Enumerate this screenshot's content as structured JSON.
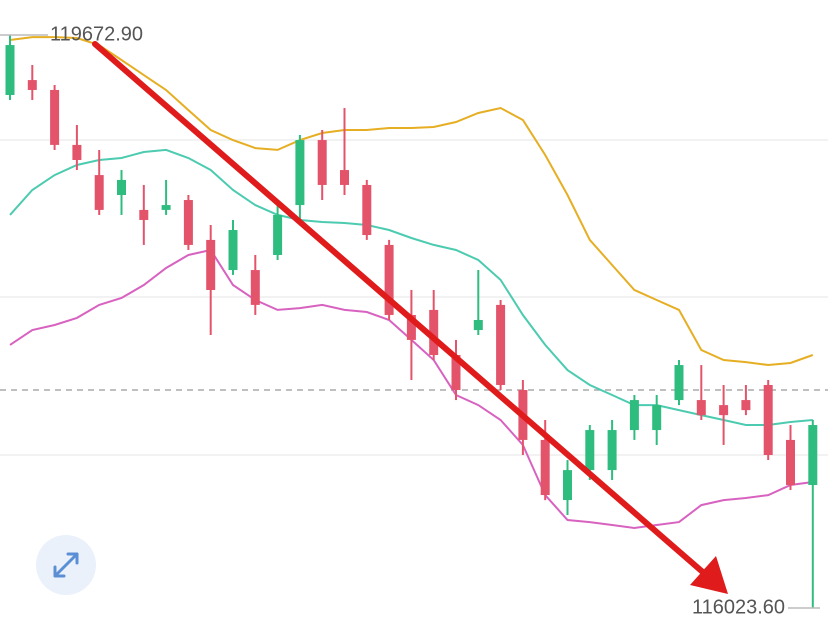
{
  "chart_data": {
    "type": "candlestick",
    "ylim": [
      115883.5,
      119896
    ],
    "up_color": "#2fbd7f",
    "down_color": "#e3546b",
    "open": [
      119291,
      119386,
      119323,
      118973,
      118781,
      118654,
      118559,
      118559,
      118622,
      118368,
      118176,
      118176,
      118272,
      118590,
      119004,
      118813,
      118718,
      118336,
      117890,
      117922,
      117635,
      117794,
      117954,
      117412,
      117094,
      116711,
      116902,
      116902,
      117157,
      117157,
      117348,
      117348,
      117316,
      117348,
      117444,
      117094,
      116807
    ],
    "high": [
      119672.9,
      119482,
      119355,
      119100,
      118941,
      118813,
      118718,
      118750,
      118654,
      118463,
      118495,
      118272,
      118590,
      119036,
      119068,
      119208,
      118750,
      118368,
      118049,
      118049,
      117731,
      118176,
      117985,
      117476,
      117221,
      116966,
      117189,
      117221,
      117380,
      117380,
      117603,
      117571,
      117444,
      117444,
      117476,
      117189,
      117221
    ],
    "low": [
      119259,
      119259,
      118941,
      118813,
      118527,
      118527,
      118336,
      118527,
      118304,
      117762,
      118145,
      117890,
      118240,
      118495,
      118622,
      118654,
      118368,
      117858,
      117476,
      117603,
      117348,
      117762,
      117412,
      116998,
      116711,
      116616,
      116839,
      116839,
      117094,
      117062,
      117316,
      117221,
      117062,
      117252,
      116966,
      116775,
      116023.6
    ],
    "close": [
      119609,
      119323,
      118973,
      118877,
      118559,
      118750,
      118495,
      118590,
      118336,
      118049,
      118431,
      117954,
      118527,
      119004,
      118718,
      118718,
      118399,
      117890,
      117731,
      117635,
      117412,
      117858,
      117444,
      117094,
      116743,
      116902,
      117157,
      117157,
      117348,
      117316,
      117571,
      117252,
      117252,
      117284,
      116998,
      116807,
      117189
    ],
    "bands": [
      {
        "color": "#e6ae22",
        "values": [
          119641,
          119660,
          119660,
          119654,
          119609,
          119514,
          119418,
          119323,
          119195,
          119068,
          119004,
          118953,
          118941,
          119004,
          119049,
          119068,
          119068,
          119081,
          119081,
          119087,
          119119,
          119176,
          119208,
          119132,
          118909,
          118654,
          118368,
          118208,
          118049,
          117985,
          117922,
          117667,
          117603,
          117590,
          117571,
          117584,
          117635
        ]
      },
      {
        "color": "#4ccbb0",
        "values": [
          118527,
          118686,
          118781,
          118845,
          118877,
          118890,
          118928,
          118941,
          118890,
          118813,
          118686,
          118590,
          118527,
          118495,
          118482,
          118476,
          118463,
          118431,
          118380,
          118336,
          118304,
          118240,
          118113,
          117890,
          117699,
          117539,
          117444,
          117380,
          117316,
          117316,
          117284,
          117252,
          117221,
          117189,
          117189,
          117208,
          117221
        ]
      },
      {
        "color": "#d862c0",
        "values": [
          117699,
          117794,
          117826,
          117871,
          117954,
          117998,
          118081,
          118189,
          118272,
          118304,
          118081,
          117985,
          117922,
          117934,
          117954,
          117922,
          117909,
          117858,
          117731,
          117603,
          117380,
          117316,
          117221,
          117062,
          116743,
          116584,
          116571,
          116552,
          116533,
          116552,
          116571,
          116679,
          116711,
          116724,
          116743,
          116807,
          116826
        ]
      }
    ],
    "high_marker": {
      "value": 119672.9,
      "label": "119672.90"
    },
    "low_marker": {
      "value": 116023.6,
      "label": "116023.60"
    }
  }
}
